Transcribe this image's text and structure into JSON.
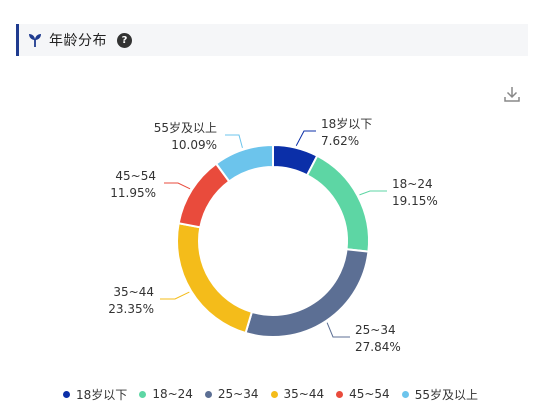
{
  "header": {
    "title": "年龄分布",
    "help_symbol": "?"
  },
  "icons": {
    "title_icon": "sprout-icon",
    "help": "question-circle-icon",
    "download": "download-icon"
  },
  "chart_data": {
    "type": "pie",
    "variant": "donut",
    "categories": [
      "18岁以下",
      "18~24",
      "25~34",
      "35~44",
      "45~54",
      "55岁及以上"
    ],
    "values": [
      7.62,
      19.15,
      27.84,
      23.35,
      11.95,
      10.09
    ],
    "value_labels": [
      "7.62%",
      "19.15%",
      "27.84%",
      "23.35%",
      "11.95%",
      "10.09%"
    ],
    "colors": [
      "#0b2fa8",
      "#5dd6a4",
      "#5c6f94",
      "#f4bc1a",
      "#e94b3c",
      "#6cc4ec"
    ],
    "legend_position": "bottom"
  }
}
